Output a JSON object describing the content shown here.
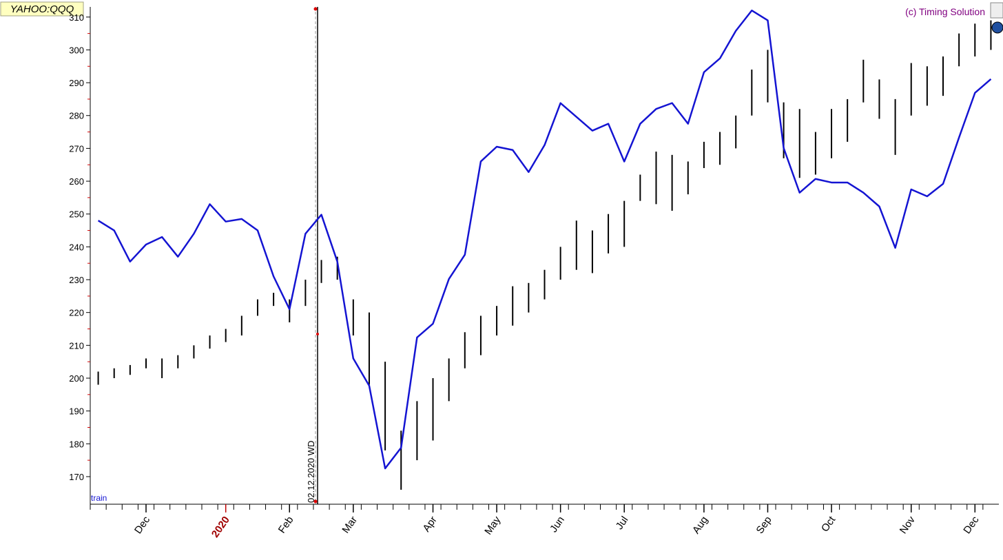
{
  "chart_data": {
    "type": "line",
    "symbol": "YAHOO:QQQ",
    "copyright": "(c) Timing Solution",
    "corner_label": "train",
    "marker_label": "02.12.2020 WD",
    "categories": [
      null,
      null,
      null,
      "Dec",
      null,
      null,
      null,
      null,
      "2020",
      null,
      null,
      null,
      "Feb",
      null,
      null,
      null,
      "Mar",
      null,
      null,
      null,
      null,
      "Apr",
      null,
      null,
      null,
      "May",
      null,
      null,
      null,
      "Jun",
      null,
      null,
      null,
      "Jul",
      null,
      null,
      null,
      null,
      "Aug",
      null,
      null,
      null,
      "Sep",
      null,
      null,
      null,
      "Oct",
      null,
      null,
      null,
      null,
      "Nov",
      null,
      null,
      null,
      "Dec",
      null
    ],
    "series": [
      {
        "color": "#1414d2",
        "values": [
          248,
          245,
          235.5,
          240.7,
          243,
          237,
          244,
          253,
          247.7,
          248.5,
          245,
          231,
          221,
          244,
          249.8,
          235.5,
          206,
          197.7,
          172.5,
          178.8,
          212.4,
          216.6,
          230.2,
          237.6,
          266,
          270.5,
          269.5,
          262.8,
          271,
          283.8,
          279.6,
          275.4,
          277.5,
          266,
          277.5,
          282,
          283.8,
          277.5,
          293.2,
          297.4,
          305.8,
          312,
          309,
          270.1,
          256.5,
          260.7,
          259.6,
          259.6,
          256.5,
          252.3,
          239.7,
          257.5,
          255.4,
          259.2,
          273.3,
          286.9,
          291.1
        ]
      }
    ],
    "bars": {
      "color": "#000000",
      "low": [
        198,
        200,
        201,
        203,
        200,
        203,
        206,
        209,
        211,
        213,
        219,
        222,
        217,
        222,
        229,
        230,
        213,
        198,
        178,
        166,
        175,
        181,
        193,
        203,
        207,
        213,
        216,
        220,
        224,
        230,
        233,
        232,
        238,
        240,
        254,
        253,
        251,
        256,
        264,
        265,
        270,
        280,
        284,
        267,
        261,
        262,
        267,
        272,
        284,
        279,
        268,
        280,
        283,
        286,
        295,
        298,
        300
      ],
      "high": [
        202,
        203,
        204,
        206,
        206,
        207,
        210,
        213,
        215,
        219,
        224,
        226,
        224,
        230,
        236,
        237,
        224,
        220,
        205,
        184,
        193,
        200,
        206,
        214,
        219,
        222,
        228,
        229,
        233,
        240,
        248,
        245,
        250,
        254,
        262,
        269,
        268,
        266,
        272,
        275,
        280,
        294,
        300,
        284,
        282,
        275,
        282,
        285,
        297,
        291,
        285,
        296,
        295,
        298,
        305,
        308,
        309
      ]
    },
    "ylim": [
      161.6,
      313.1
    ],
    "yticks": [
      170,
      180,
      190,
      200,
      210,
      220,
      230,
      240,
      250,
      260,
      270,
      280,
      290,
      300,
      310
    ]
  }
}
